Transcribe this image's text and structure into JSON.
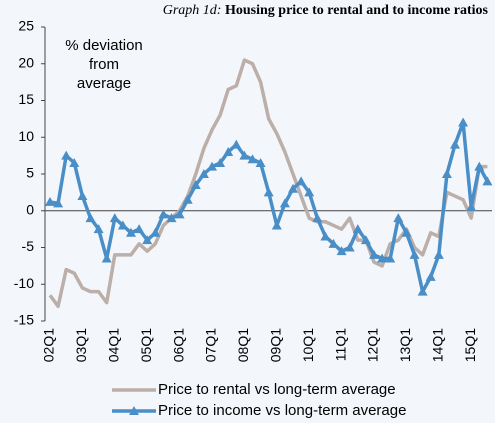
{
  "chart_data": {
    "type": "line",
    "title_prefix": "Graph 1d:",
    "title": "Housing price to rental and to income ratios",
    "annotation": "% deviation from average",
    "categories": [
      "02Q1",
      null,
      null,
      null,
      "03Q1",
      null,
      null,
      null,
      "04Q1",
      null,
      null,
      null,
      "05Q1",
      null,
      null,
      null,
      "06Q1",
      null,
      null,
      null,
      "07Q1",
      null,
      null,
      null,
      "08Q1",
      null,
      null,
      null,
      "09Q1",
      null,
      null,
      null,
      "10Q1",
      null,
      null,
      null,
      "11Q1",
      null,
      null,
      null,
      "12Q1",
      null,
      null,
      null,
      "13Q1",
      null,
      null,
      null,
      "14Q1",
      null,
      null,
      null,
      "15Q1",
      null,
      null
    ],
    "series": [
      {
        "name": "Price to rental vs long-term average",
        "color": "#bcaea8",
        "marker": "none",
        "values": [
          -11.5,
          -13,
          -8,
          -8.5,
          -10.5,
          -11,
          -11,
          -12.5,
          -6,
          -6,
          -6,
          -4.5,
          -5.5,
          -4.5,
          -2,
          -1,
          0,
          2,
          5,
          8.5,
          11,
          13,
          16.5,
          17,
          20.5,
          20,
          17.5,
          12.5,
          10.5,
          8,
          5,
          2,
          -1,
          -1.5,
          -1.5,
          -2,
          -2.5,
          -1,
          -4,
          -4,
          -7,
          -7.5,
          -4.5,
          -4,
          -2.5,
          -5,
          -6,
          -3,
          -3.5,
          2.5,
          2,
          1.5,
          -1,
          6,
          6
        ]
      },
      {
        "name": "Price to income vs long-term average",
        "color": "#4a8ec8",
        "marker": "triangle",
        "values": [
          1.2,
          1,
          7.5,
          6.5,
          2,
          -1,
          -2.5,
          -6.5,
          -1,
          -2,
          -3,
          -2.5,
          -4,
          -3,
          -0.5,
          -1,
          -0.5,
          1.5,
          3.5,
          5,
          6,
          6.5,
          8,
          9,
          7.5,
          7,
          6.5,
          2.5,
          -2,
          1,
          3,
          4,
          2.5,
          -1,
          -3.5,
          -4.5,
          -5.5,
          -5,
          -2.5,
          -4,
          -6,
          -6.5,
          -6.5,
          -1,
          -3,
          -6,
          -11,
          -9,
          -6,
          5,
          9,
          12,
          0.5,
          6,
          4
        ]
      }
    ],
    "ylim": [
      -15,
      25
    ],
    "yticks": [
      -15,
      -10,
      -5,
      0,
      5,
      10,
      15,
      20,
      25
    ]
  }
}
